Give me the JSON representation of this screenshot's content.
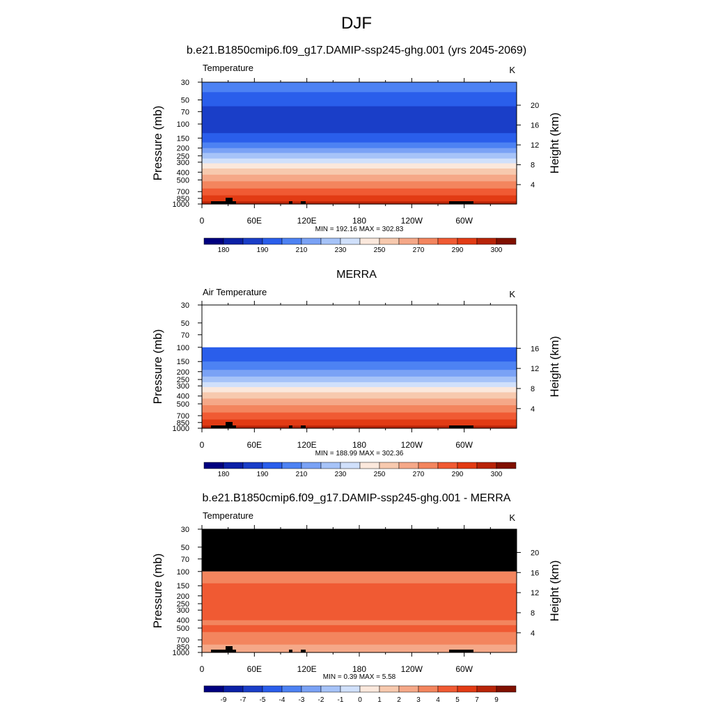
{
  "figure": {
    "title": "DJF"
  },
  "colors": {
    "temperature_scale": [
      "#00007f",
      "#0b20a6",
      "#1a3ec8",
      "#2a5eeb",
      "#4d82f3",
      "#7aa2f5",
      "#a6c3f8",
      "#d0e0fb",
      "#fbe8dc",
      "#f7c9ae",
      "#f5a888",
      "#f3855e",
      "#f05a33",
      "#e23b14",
      "#b82408",
      "#801000"
    ],
    "diff_scale": [
      "#00007f",
      "#0b20a6",
      "#1a3ec8",
      "#2a5eeb",
      "#4d82f3",
      "#7aa2f5",
      "#a6c3f8",
      "#d0e0fb",
      "#fbe8dc",
      "#f7c9ae",
      "#f5a888",
      "#f3855e",
      "#f05a33",
      "#e23b14",
      "#b82408",
      "#801000"
    ],
    "masked": "#000000",
    "missing": "#ffffff"
  },
  "chart_data": [
    {
      "type": "heatmap",
      "title": "b.e21.B1850cmip6.f09_g17.DAMIP-ssp245-ghg.001 (yrs 2045-2069)",
      "left_string": "Temperature",
      "units": "K",
      "ylabel": "Pressure (mb)",
      "ylabel_right": "Height (km)",
      "stats": "MIN = 192.16  MAX = 302.83",
      "min": 192.16,
      "max": 302.83,
      "x_ticks": [
        "0",
        "60E",
        "120E",
        "180",
        "120W",
        "60W"
      ],
      "pressure_ticks": [
        "30",
        "50",
        "70",
        "100",
        "150",
        "200",
        "250",
        "300",
        "400",
        "500",
        "700",
        "850",
        "1000"
      ],
      "height_ticks": [
        "20",
        "16",
        "12",
        "8",
        "4"
      ],
      "colorbar_labels": [
        "180",
        "190",
        "210",
        "230",
        "250",
        "270",
        "290",
        "300"
      ],
      "pressure_range": [
        30,
        1000
      ],
      "data_top": 30,
      "surface_mask": true,
      "profile_by_pressure": [
        {
          "p": 30,
          "bin": 4
        },
        {
          "p": 40,
          "bin": 3
        },
        {
          "p": 60,
          "bin": 2
        },
        {
          "p": 130,
          "bin": 3
        },
        {
          "p": 170,
          "bin": 4
        },
        {
          "p": 200,
          "bin": 5
        },
        {
          "p": 230,
          "bin": 6
        },
        {
          "p": 270,
          "bin": 7
        },
        {
          "p": 310,
          "bin": 8
        },
        {
          "p": 360,
          "bin": 9
        },
        {
          "p": 430,
          "bin": 10
        },
        {
          "p": 520,
          "bin": 11
        },
        {
          "p": 640,
          "bin": 12
        },
        {
          "p": 780,
          "bin": 13
        },
        {
          "p": 930,
          "bin": 14
        }
      ]
    },
    {
      "type": "heatmap",
      "title": "MERRA",
      "left_string": "Air Temperature",
      "units": "K",
      "ylabel": "Pressure (mb)",
      "ylabel_right": "Height (km)",
      "stats": "MIN = 188.99  MAX = 302.36",
      "min": 188.99,
      "max": 302.36,
      "x_ticks": [
        "0",
        "60E",
        "120E",
        "180",
        "120W",
        "60W"
      ],
      "pressure_ticks": [
        "30",
        "50",
        "70",
        "100",
        "150",
        "200",
        "250",
        "300",
        "400",
        "500",
        "700",
        "850",
        "1000"
      ],
      "height_ticks": [
        "16",
        "12",
        "8",
        "4"
      ],
      "colorbar_labels": [
        "180",
        "190",
        "210",
        "230",
        "250",
        "270",
        "290",
        "300"
      ],
      "pressure_range": [
        30,
        1000
      ],
      "data_top": 100,
      "surface_mask": true,
      "profile_by_pressure": [
        {
          "p": 100,
          "bin": 3
        },
        {
          "p": 150,
          "bin": 4
        },
        {
          "p": 190,
          "bin": 5
        },
        {
          "p": 230,
          "bin": 6
        },
        {
          "p": 270,
          "bin": 7
        },
        {
          "p": 310,
          "bin": 8
        },
        {
          "p": 360,
          "bin": 9
        },
        {
          "p": 430,
          "bin": 10
        },
        {
          "p": 520,
          "bin": 11
        },
        {
          "p": 640,
          "bin": 12
        },
        {
          "p": 780,
          "bin": 13
        },
        {
          "p": 930,
          "bin": 14
        }
      ]
    },
    {
      "type": "heatmap",
      "title": "b.e21.B1850cmip6.f09_g17.DAMIP-ssp245-ghg.001 - MERRA",
      "left_string": "Temperature",
      "units": "K",
      "ylabel": "Pressure (mb)",
      "ylabel_right": "Height (km)",
      "stats": "MIN =   0.39  MAX =   5.58",
      "min": 0.39,
      "max": 5.58,
      "x_ticks": [
        "0",
        "60E",
        "120E",
        "180",
        "120W",
        "60W"
      ],
      "pressure_ticks": [
        "30",
        "50",
        "70",
        "100",
        "150",
        "200",
        "250",
        "300",
        "400",
        "500",
        "700",
        "850",
        "1000"
      ],
      "height_ticks": [
        "20",
        "16",
        "12",
        "8",
        "4"
      ],
      "colorbar_labels": [
        "-9",
        "-7",
        "-5",
        "-4",
        "-3",
        "-2",
        "-1",
        "0",
        "1",
        "2",
        "3",
        "4",
        "5",
        "7",
        "9"
      ],
      "pressure_range": [
        30,
        1000
      ],
      "data_top": 100,
      "masked_above": true,
      "surface_mask": true,
      "profile_by_pressure": [
        {
          "p": 100,
          "bin": 11
        },
        {
          "p": 140,
          "bin": 12
        },
        {
          "p": 400,
          "bin": 11
        },
        {
          "p": 460,
          "bin": 12
        },
        {
          "p": 560,
          "bin": 11
        },
        {
          "p": 800,
          "bin": 10
        }
      ]
    }
  ]
}
